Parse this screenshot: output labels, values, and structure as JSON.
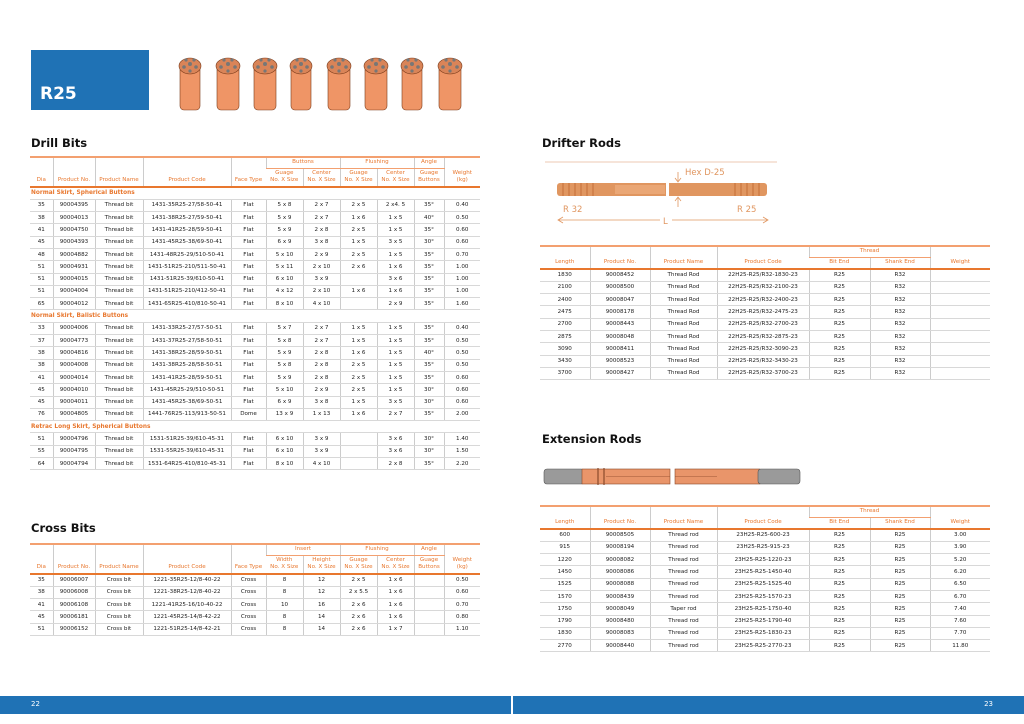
{
  "page_title": "R25",
  "colors": {
    "accent": "#e8772e",
    "brand_blue": "#1f72b5"
  },
  "drill_bits": {
    "title": "Drill Bits",
    "headers": {
      "dia": "Dia",
      "product_no": "Product No.",
      "product_name": "Product Name",
      "product_code": "Product Code",
      "face_type": "Face Type",
      "buttons": "Buttons",
      "flushing": "Flushing",
      "angle": "Angle",
      "weight": "Weight\n(kg)",
      "b_guage": "Guage\nNo. X Size",
      "b_center": "Center\nNo. X Size",
      "f_guage": "Guage\nNo. X Size",
      "f_center": "Center\nNo. X Size",
      "a_guage": "Guage\nButtons"
    },
    "rows": [
      {
        "section": "Normal Skirt, Spherical Buttons"
      },
      [
        "35",
        "90004395",
        "Thread bit",
        "1431-35R25-27/58-50-41",
        "Flat",
        "5 x 8",
        "2 x 7",
        "2 x 5",
        "2 x4. 5",
        "35°",
        "0.40"
      ],
      [
        "38",
        "90004013",
        "Thread bit",
        "1431-38R25-27/59-50-41",
        "Flat",
        "5 x 9",
        "2 x 7",
        "1 x 6",
        "1 x 5",
        "40°",
        "0.50"
      ],
      [
        "41",
        "90004750",
        "Thread bit",
        "1431-41R25-28/59-50-41",
        "Flat",
        "5 x 9",
        "2 x 8",
        "2 x 5",
        "1 x 5",
        "35°",
        "0.60"
      ],
      [
        "45",
        "90004393",
        "Thread bit",
        "1431-45R25-38/69-50-41",
        "Flat",
        "6 x 9",
        "3 x 8",
        "1 x 5",
        "3 x 5",
        "30°",
        "0.60"
      ],
      [
        "48",
        "90004882",
        "Thread bit",
        "1431-48R25-29/510-50-41",
        "Flat",
        "5 x 10",
        "2 x 9",
        "2 x 5",
        "1 x 5",
        "35°",
        "0.70"
      ],
      [
        "51",
        "90004931",
        "Thread bit",
        "1431-51R25-210/511-50-41",
        "Flat",
        "5 x 11",
        "2 x 10",
        "2 x 6",
        "1 x 6",
        "35°",
        "1.00"
      ],
      [
        "51",
        "90004015",
        "Thread bit",
        "1431-51R25-39/610-50-41",
        "Flat",
        "6 x 10",
        "3 x 9",
        "",
        "3 x 6",
        "35°",
        "1.00"
      ],
      [
        "51",
        "90004004",
        "Thread bit",
        "1431-51R25-210/412-50-41",
        "Flat",
        "4 x 12",
        "2 x 10",
        "1 x 6",
        "1 x 6",
        "35°",
        "1.00"
      ],
      [
        "65",
        "90004012",
        "Thread bit",
        "1431-65R25-410/810-50-41",
        "Flat",
        "8 x 10",
        "4 x 10",
        "",
        "2 x 9",
        "35°",
        "1.60"
      ],
      {
        "section": "Normal Skirt, Balistic Buttons"
      },
      [
        "33",
        "90004006",
        "Thread bit",
        "1431-33R25-27/57-50-51",
        "Flat",
        "5 x 7",
        "2 x 7",
        "1 x 5",
        "1 x 5",
        "35°",
        "0.40"
      ],
      [
        "37",
        "90004773",
        "Thread bit",
        "1431-37R25-27/58-50-51",
        "Flat",
        "5 x 8",
        "2 x 7",
        "1 x 5",
        "1 x 5",
        "35°",
        "0.50"
      ],
      [
        "38",
        "90004816",
        "Thread bit",
        "1431-38R25-28/59-50-51",
        "Flat",
        "5 x 9",
        "2 x 8",
        "1 x 6",
        "1 x 5",
        "40°",
        "0.50"
      ],
      [
        "38",
        "90004008",
        "Thread bit",
        "1431-38R25-28/58-50-51",
        "Flat",
        "5 x 8",
        "2 x 8",
        "2 x 5",
        "1 x 5",
        "35°",
        "0.50"
      ],
      [
        "41",
        "90004014",
        "Thread bit",
        "1431-41R25-28/59-50-51",
        "Flat",
        "5 x 9",
        "2 x 8",
        "2 x 5",
        "1 x 5",
        "35°",
        "0.60"
      ],
      [
        "45",
        "90004010",
        "Thread bit",
        "1431-45R25-29/510-50-51",
        "Flat",
        "5 x 10",
        "2 x 9",
        "2 x 5",
        "1 x 5",
        "30°",
        "0.60"
      ],
      [
        "45",
        "90004011",
        "Thread bit",
        "1431-45R25-38/69-50-51",
        "Flat",
        "6 x 9",
        "3 x 8",
        "1 x 5",
        "3 x 5",
        "30°",
        "0.60"
      ],
      [
        "76",
        "90004805",
        "Thread bit",
        "1441-76R25-113/913-50-51",
        "Dome",
        "13 x 9",
        "1 x 13",
        "1 x 6",
        "2 x 7",
        "35°",
        "2.00"
      ],
      {
        "section": "Retrac Long Skirt, Spherical Buttons"
      },
      [
        "51",
        "90004796",
        "Thread bit",
        "1531-51R25-39/610-45-31",
        "Flat",
        "6 x 10",
        "3 x 9",
        "",
        "3 x 6",
        "30°",
        "1.40"
      ],
      [
        "55",
        "90004795",
        "Thread bit",
        "1531-55R25-39/610-45-31",
        "Flat",
        "6 x 10",
        "3 x 9",
        "",
        "3 x 6",
        "30°",
        "1.50"
      ],
      [
        "64",
        "90004794",
        "Thread bit",
        "1531-64R25-410/810-45-31",
        "Flat",
        "8 x 10",
        "4 x 10",
        "",
        "2 x 8",
        "35°",
        "2.20"
      ]
    ]
  },
  "cross_bits": {
    "title": "Cross Bits",
    "headers": {
      "dia": "Dia",
      "product_no": "Product No.",
      "product_name": "Product Name",
      "product_code": "Product Code",
      "face_type": "Face Type",
      "insert": "Insert",
      "flushing": "Flushing",
      "angle": "Angle",
      "weight": "Weight\n(kg)",
      "i_width": "Width\nNo. X Size",
      "i_height": "Height\nNo. X Size",
      "f_guage": "Guage\nNo. X Size",
      "f_center": "Center\nNo. X Size",
      "a_guage": "Guage\nButtons"
    },
    "rows": [
      [
        "35",
        "90006007",
        "Cross bit",
        "1221-35R25-12/8-40-22",
        "Cross",
        "8",
        "12",
        "2 x 5",
        "1 x 6",
        "",
        "0.50"
      ],
      [
        "38",
        "90006008",
        "Cross bit",
        "1221-38R25-12/8-40-22",
        "Cross",
        "8",
        "12",
        "2 x 5.5",
        "1 x 6",
        "",
        "0.60"
      ],
      [
        "41",
        "90006108",
        "Cross bit",
        "1221-41R25-16/10-40-22",
        "Cross",
        "10",
        "16",
        "2 x 6",
        "1 x 6",
        "",
        "0.70"
      ],
      [
        "45",
        "90006181",
        "Cross bit",
        "1221-45R25-14/8-42-22",
        "Cross",
        "8",
        "14",
        "2 x 6",
        "1 x 6",
        "",
        "0.80"
      ],
      [
        "51",
        "90006152",
        "Cross bit",
        "1221-51R25-14/8-42-21",
        "Cross",
        "8",
        "14",
        "2 x 6",
        "1 x 7",
        "",
        "1.10"
      ]
    ]
  },
  "drifter_rods": {
    "title": "Drifter Rods",
    "diagram": {
      "hex": "Hex D-25",
      "left": "R 32",
      "right": "R 25",
      "length": "L"
    },
    "headers": {
      "length": "Length",
      "product_no": "Product No.",
      "product_name": "Product Name",
      "product_code": "Product Code",
      "thread": "Thread",
      "bit_end": "Bit End",
      "shank_end": "Shank End",
      "weight": "Weight"
    },
    "rows": [
      [
        "1830",
        "90008452",
        "Thread Rod",
        "22H25-R25/R32-1830-23",
        "R25",
        "R32",
        ""
      ],
      [
        "2100",
        "90008500",
        "Thread Rod",
        "22H25-R25/R32-2100-23",
        "R25",
        "R32",
        ""
      ],
      [
        "2400",
        "90008047",
        "Thread Rod",
        "22H25-R25/R32-2400-23",
        "R25",
        "R32",
        ""
      ],
      [
        "2475",
        "90008178",
        "Thread Rod",
        "22H25-R25/R32-2475-23",
        "R25",
        "R32",
        ""
      ],
      [
        "2700",
        "90008443",
        "Thread Rod",
        "22H25-R25/R32-2700-23",
        "R25",
        "R32",
        ""
      ],
      [
        "2875",
        "90008048",
        "Thread Rod",
        "22H25-R25/R32-2875-23",
        "R25",
        "R32",
        ""
      ],
      [
        "3090",
        "90008411",
        "Thread Rod",
        "22H25-R25/R32-3090-23",
        "R25",
        "R32",
        ""
      ],
      [
        "3430",
        "90008523",
        "Thread Rod",
        "22H25-R25/R32-3430-23",
        "R25",
        "R32",
        ""
      ],
      [
        "3700",
        "90008427",
        "Thread Rod",
        "22H25-R25/R32-3700-23",
        "R25",
        "R32",
        ""
      ]
    ]
  },
  "extension_rods": {
    "title": "Extension Rods",
    "headers": {
      "length": "Length",
      "product_no": "Product No.",
      "product_name": "Product Name",
      "product_code": "Product Code",
      "thread": "Thread",
      "bit_end": "Bit End",
      "shank_end": "Shank End",
      "weight": "Weight"
    },
    "rows": [
      [
        "600",
        "90008505",
        "Thread rod",
        "23H25-R25-600-23",
        "R25",
        "R25",
        "3.00"
      ],
      [
        "915",
        "90008194",
        "Thread rod",
        "23H25-R25-915-23",
        "R25",
        "R25",
        "3.90"
      ],
      [
        "1220",
        "90008082",
        "Thread rod",
        "23H25-R25-1220-23",
        "R25",
        "R25",
        "5.20"
      ],
      [
        "1450",
        "90008086",
        "Thread rod",
        "23H25-R25-1450-40",
        "R25",
        "R25",
        "6.20"
      ],
      [
        "1525",
        "90008088",
        "Thread rod",
        "23H25-R25-1525-40",
        "R25",
        "R25",
        "6.50"
      ],
      [
        "1570",
        "90008439",
        "Thread rod",
        "23H25-R25-1570-23",
        "R25",
        "R25",
        "6.70"
      ],
      [
        "1750",
        "90008049",
        "Taper rod",
        "23H25-R25-1750-40",
        "R25",
        "R25",
        "7.40"
      ],
      [
        "1790",
        "90008480",
        "Thread rod",
        "23H25-R25-1790-40",
        "R25",
        "R25",
        "7.60"
      ],
      [
        "1830",
        "90008083",
        "Thread rod",
        "23H25-R25-1830-23",
        "R25",
        "R25",
        "7.70"
      ],
      [
        "2770",
        "90008440",
        "Thread rod",
        "23H25-R25-2770-23",
        "R25",
        "R25",
        "11.80"
      ]
    ]
  },
  "footer": {
    "left_page": "22",
    "right_page": "23"
  }
}
